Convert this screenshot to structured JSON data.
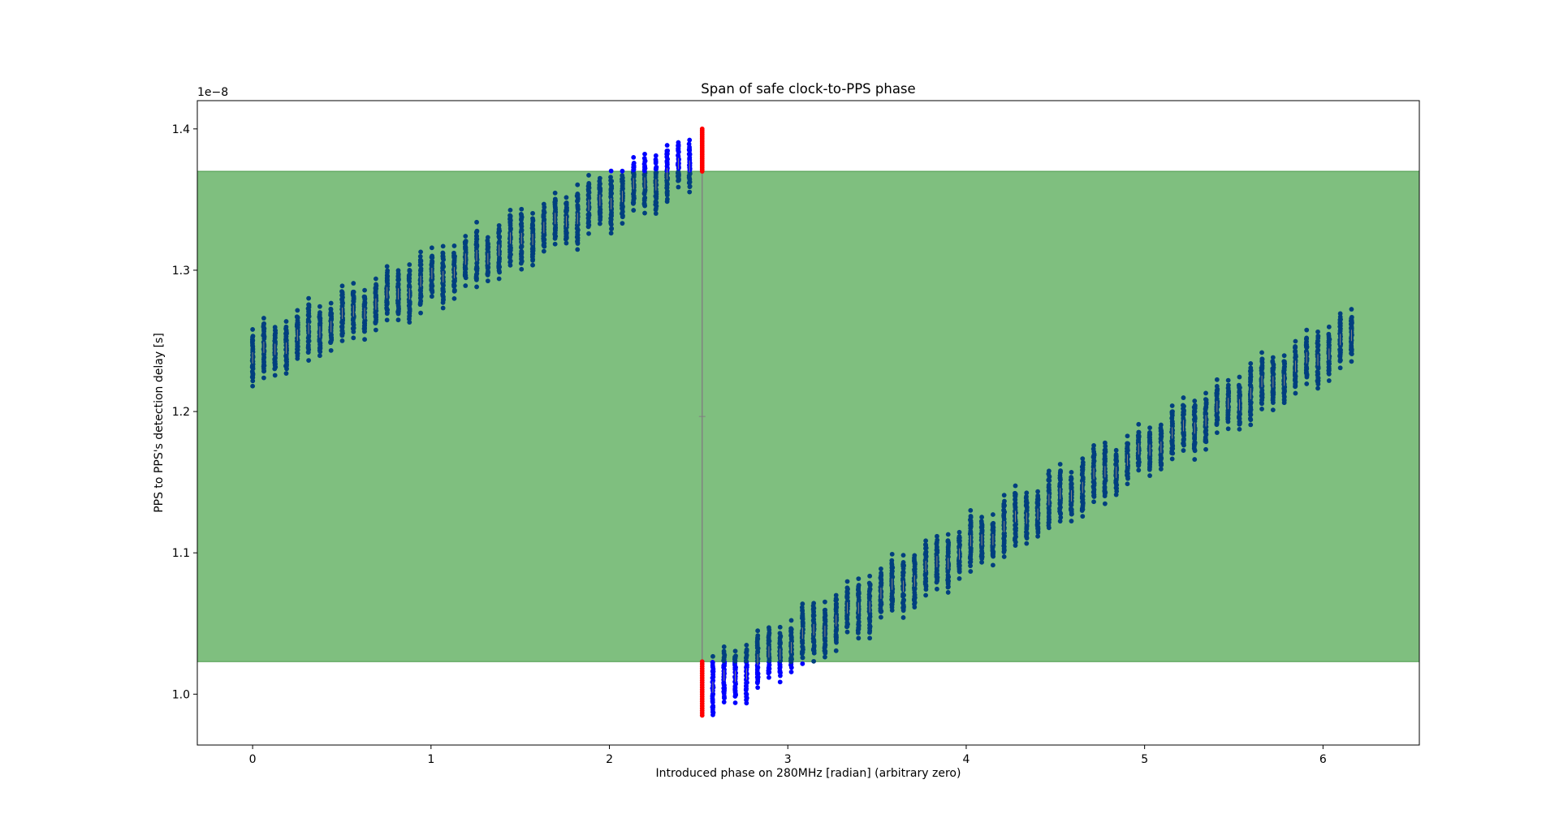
{
  "chart_data": {
    "type": "scatter",
    "title": "Span of safe clock-to-PPS phase",
    "xlabel": "Introduced phase on 280MHz [radian] (arbitrary zero)",
    "ylabel": "PPS to PPS's detection delay [s]",
    "y_offset_label": "1e−8",
    "xlim": [
      -0.31,
      6.54
    ],
    "ylim": [
      0.964,
      1.42
    ],
    "xticks": [
      0,
      1,
      2,
      3,
      4,
      5,
      6
    ],
    "xtick_labels": [
      "0",
      "1",
      "2",
      "3",
      "4",
      "5",
      "6"
    ],
    "yticks": [
      1.0,
      1.1,
      1.2,
      1.3,
      1.4
    ],
    "ytick_labels": [
      "1.0",
      "1.1",
      "1.2",
      "1.3",
      "1.4"
    ],
    "grid": false,
    "legend": "none",
    "safe_band": {
      "y_low": 1.023,
      "y_high": 1.37,
      "color": "#7fbf7f"
    },
    "phase_wrap": {
      "x": 2.52,
      "y_low": 1.023,
      "y_high": 1.37,
      "color": "#808080"
    },
    "colors": {
      "in_band": "#003f7f",
      "out_of_band": "#0000ff",
      "wrap_point": "#ff0000",
      "median": "#808080"
    },
    "step": 0.0628,
    "series": [
      {
        "role": "upper-branch",
        "x_start": 0.0,
        "center_start": 1.238,
        "center_end": 1.375,
        "count": 40,
        "half_range": 0.012,
        "spread": 0.045
      },
      {
        "role": "wrap-column",
        "x": 2.52,
        "top": [
          1.37,
          1.4
        ],
        "bottom": [
          0.985,
          1.023
        ]
      },
      {
        "role": "lower-branch",
        "x_start": 2.58,
        "center_start": 1.005,
        "center_end": 1.252,
        "count": 58,
        "half_range": 0.012,
        "spread": 0.045
      }
    ]
  }
}
